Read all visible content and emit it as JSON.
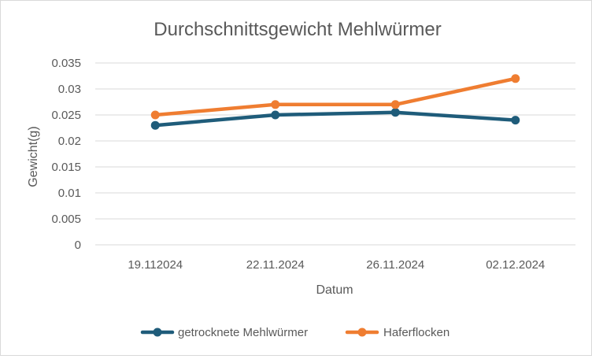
{
  "chart_data": {
    "type": "line",
    "title": "Durchschnittsgewicht Mehlwürmer",
    "xlabel": "Datum",
    "ylabel": "Gewicht(g)",
    "categories": [
      "19.112024",
      "22.11.2024",
      "26.11.2024",
      "02.12.2024"
    ],
    "ylim": [
      0,
      0.035
    ],
    "yticks": [
      "0",
      "0.005",
      "0.01",
      "0.015",
      "0.02",
      "0.025",
      "0.03",
      "0.035"
    ],
    "grid": true,
    "legend_position": "bottom",
    "series": [
      {
        "name": "getrocknete Mehlwürmer",
        "color": "#1f5c7a",
        "values": [
          0.023,
          0.025,
          0.0255,
          0.024
        ]
      },
      {
        "name": "Haferflocken",
        "color": "#ef7d31",
        "values": [
          0.025,
          0.027,
          0.027,
          0.032
        ]
      }
    ]
  }
}
